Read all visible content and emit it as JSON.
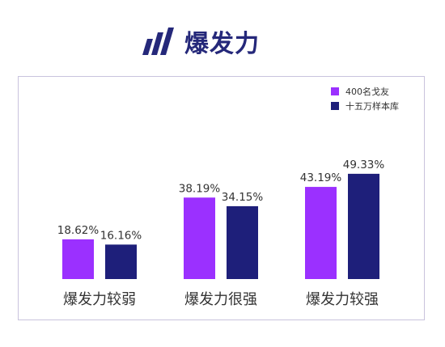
{
  "header": {
    "title": "爆发力",
    "icon": "slanted-bars-logo-icon"
  },
  "colors": {
    "series1": "#9b30ff",
    "series2": "#1e1f7a",
    "title": "#25287a",
    "panel_border": "#c9c3dd"
  },
  "chart_data": {
    "type": "bar",
    "categories": [
      "爆发力较弱",
      "爆发力很强",
      "爆发力较强"
    ],
    "series": [
      {
        "name": "400名戈友",
        "values": [
          18.62,
          38.19,
          43.19
        ],
        "labels": [
          "18.62%",
          "38.19%",
          "43.19%"
        ]
      },
      {
        "name": "十五万样本库",
        "values": [
          16.16,
          34.15,
          49.33
        ],
        "labels": [
          "16.16%",
          "34.15%",
          "49.33%"
        ]
      }
    ],
    "legend_position": "top-right",
    "grid": false,
    "ylim": [
      0,
      60
    ]
  }
}
